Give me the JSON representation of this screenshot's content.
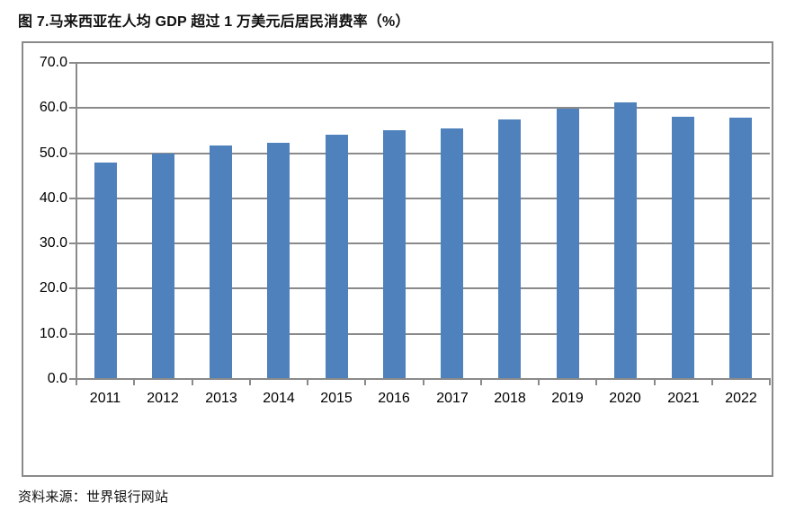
{
  "figure": {
    "title": "图 7.马来西亚在人均 GDP 超过 1 万美元后居民消费率（%）",
    "source": "资料来源：世界银行网站"
  },
  "chart_data": {
    "type": "bar",
    "title": "图 7.马来西亚在人均 GDP 超过 1 万美元后居民消费率（%）",
    "categories": [
      "2011",
      "2012",
      "2013",
      "2014",
      "2015",
      "2016",
      "2017",
      "2018",
      "2019",
      "2020",
      "2021",
      "2022"
    ],
    "values": [
      48.0,
      50.0,
      51.8,
      52.4,
      54.0,
      55.0,
      55.5,
      57.5,
      59.9,
      61.3,
      58.0,
      57.8
    ],
    "xlabel": "",
    "ylabel": "",
    "ylim": [
      0,
      70
    ],
    "ytick_step": 10,
    "ytick_labels": [
      "0.0",
      "10.0",
      "20.0",
      "30.0",
      "40.0",
      "50.0",
      "60.0",
      "70.0"
    ],
    "grid": true,
    "legend_position": "none",
    "bar_color": "#4F81BD",
    "grid_color": "#8a8a8a",
    "axis_color": "#8a8a8a",
    "label_color": "#000000",
    "source": "资料来源：世界银行网站"
  }
}
